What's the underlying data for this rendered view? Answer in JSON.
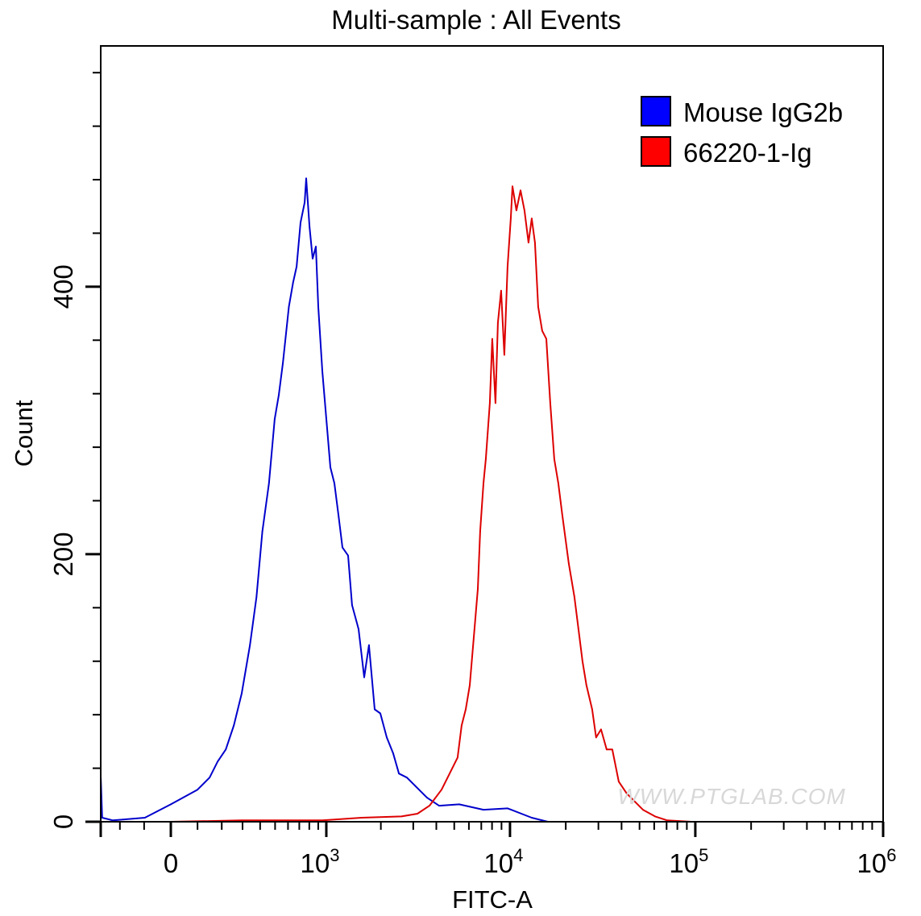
{
  "chart_data": {
    "type": "line",
    "title": "Multi-sample : All Events",
    "xlabel": "FITC-A",
    "ylabel": "Count",
    "x_scale": "biexponential",
    "xlim": [
      -290,
      1000000
    ],
    "ylim": [
      0,
      580
    ],
    "grid": false,
    "legend_position": "top-right",
    "x_ticks": [
      {
        "value": 0,
        "label": "0",
        "exp": ""
      },
      {
        "value": 1000,
        "label": "10",
        "exp": "3"
      },
      {
        "value": 10000,
        "label": "10",
        "exp": "4"
      },
      {
        "value": 100000,
        "label": "10",
        "exp": "5"
      },
      {
        "value": 1000000,
        "label": "10",
        "exp": "6"
      }
    ],
    "y_ticks": [
      {
        "value": 0,
        "label": "0"
      },
      {
        "value": 200,
        "label": "200"
      },
      {
        "value": 400,
        "label": "400"
      }
    ],
    "series": [
      {
        "name": "Mouse IgG2b",
        "color": "#0000ff",
        "line_color": "#0000cc",
        "x": [
          -291,
          -284,
          -232,
          -97,
          0,
          100,
          148,
          182,
          218,
          256,
          296,
          340,
          378,
          414,
          457,
          497,
          527,
          559,
          607,
          643,
          675,
          712,
          752,
          768,
          802,
          836,
          873,
          901,
          949,
          1000,
          1054,
          1110,
          1170,
          1231,
          1322,
          1391,
          1510,
          1622,
          1723,
          1851,
          1987,
          2155,
          2336,
          2508,
          2771,
          3066,
          3562,
          4140,
          5320,
          7190,
          9710,
          13100,
          16000
        ],
        "y": [
          33,
          3,
          1,
          3,
          13,
          24,
          33,
          45,
          54,
          72,
          96,
          132,
          168,
          217,
          253,
          301,
          319,
          343,
          385,
          403,
          415,
          448,
          463,
          481,
          445,
          421,
          430,
          385,
          337,
          301,
          265,
          253,
          229,
          205,
          199,
          162,
          144,
          108,
          132,
          84,
          81,
          63,
          51,
          36,
          33,
          27,
          18,
          12,
          13,
          9,
          10,
          3,
          0
        ]
      },
      {
        "name": "66220-1-Ig",
        "color": "#ff0000",
        "line_color": "#dd0000",
        "x": [
          0,
          296,
          949,
          1569,
          2588,
          3163,
          3674,
          4270,
          4720,
          5215,
          5484,
          5766,
          6063,
          6374,
          6702,
          6902,
          7189,
          7406,
          7787,
          8022,
          8350,
          8605,
          8956,
          9325,
          9707,
          10100,
          10310,
          10830,
          11400,
          11970,
          12590,
          13100,
          13640,
          14190,
          14930,
          15700,
          16500,
          17340,
          18230,
          19170,
          20760,
          22280,
          23410,
          24610,
          25870,
          27750,
          29170,
          30980,
          33250,
          35660,
          38620,
          42700,
          47200,
          52150,
          60650,
          70500,
          95100
        ],
        "y": [
          0,
          1,
          1,
          3,
          4,
          6,
          12,
          24,
          36,
          48,
          72,
          84,
          102,
          138,
          174,
          217,
          253,
          271,
          313,
          361,
          313,
          373,
          397,
          349,
          415,
          451,
          475,
          457,
          472,
          457,
          433,
          451,
          433,
          385,
          367,
          361,
          313,
          271,
          253,
          229,
          193,
          168,
          144,
          120,
          102,
          84,
          63,
          69,
          54,
          54,
          30,
          21,
          15,
          9,
          4,
          1,
          0
        ]
      }
    ],
    "watermark": "WWW.PTGLAB.COM"
  }
}
